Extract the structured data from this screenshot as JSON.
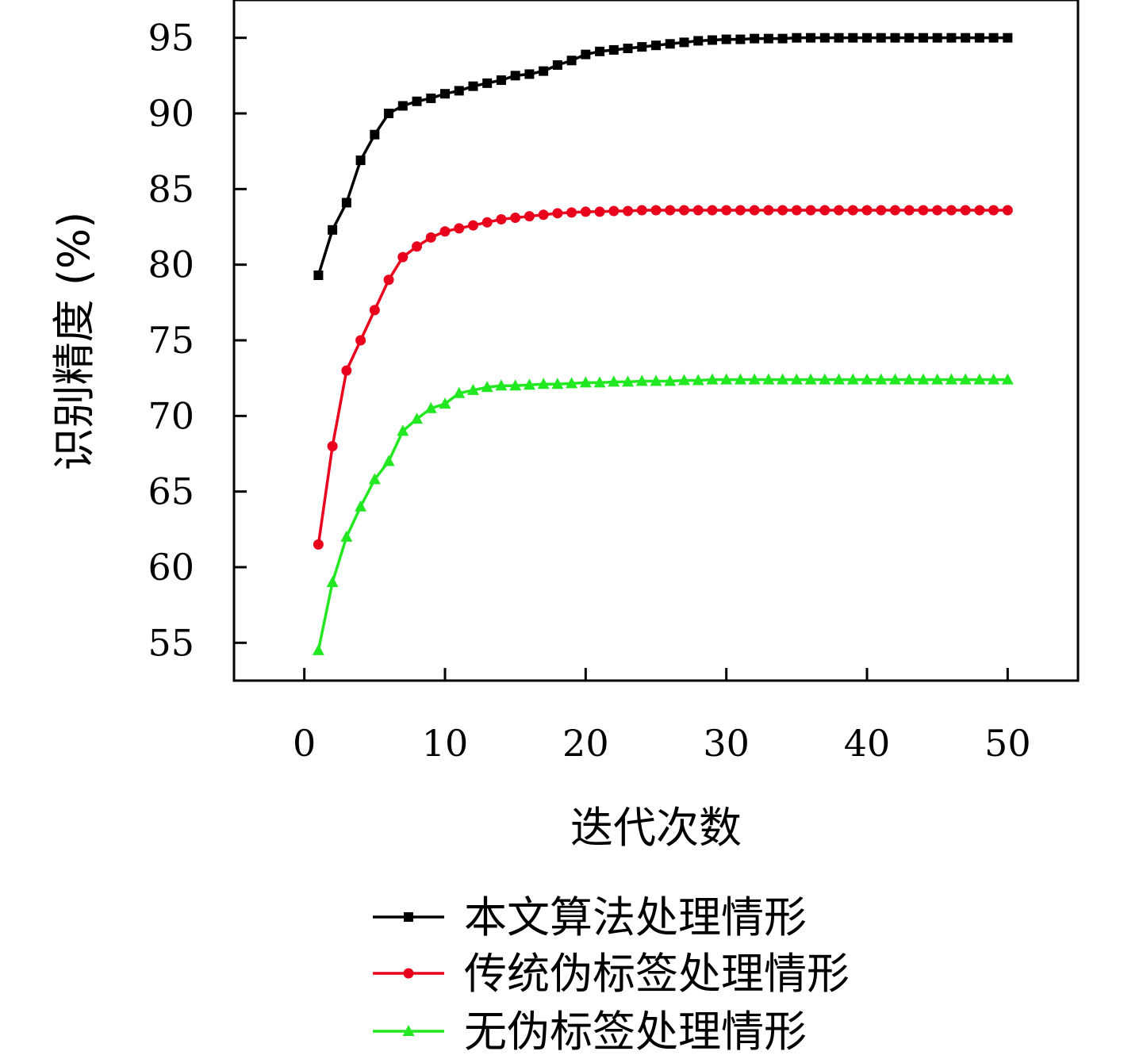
{
  "chart_data": {
    "type": "line",
    "xlabel": "迭代次数",
    "ylabel": "识别精度 (%)",
    "xlim": [
      -5,
      55
    ],
    "ylim": [
      52.5,
      97.5
    ],
    "xticks": [
      0,
      10,
      20,
      30,
      40,
      50
    ],
    "yticks": [
      55,
      60,
      65,
      70,
      75,
      80,
      85,
      90,
      95
    ],
    "grid": false,
    "legend_position": "bottom",
    "x": [
      1,
      2,
      3,
      4,
      5,
      6,
      7,
      8,
      9,
      10,
      11,
      12,
      13,
      14,
      15,
      16,
      17,
      18,
      19,
      20,
      21,
      22,
      23,
      24,
      25,
      26,
      27,
      28,
      29,
      30,
      31,
      32,
      33,
      34,
      35,
      36,
      37,
      38,
      39,
      40,
      41,
      42,
      43,
      44,
      45,
      46,
      47,
      48,
      49,
      50
    ],
    "series": [
      {
        "name": "本文算法处理情形",
        "color": "#000000",
        "marker": "square",
        "values": [
          79.3,
          82.3,
          84.1,
          86.9,
          88.6,
          90.0,
          90.5,
          90.8,
          91.0,
          91.3,
          91.5,
          91.8,
          92.0,
          92.2,
          92.5,
          92.6,
          92.8,
          93.2,
          93.5,
          93.9,
          94.1,
          94.2,
          94.3,
          94.4,
          94.5,
          94.6,
          94.7,
          94.8,
          94.85,
          94.9,
          94.9,
          94.95,
          94.95,
          94.95,
          95,
          95,
          95,
          95,
          95,
          95,
          95,
          95,
          95,
          95,
          95,
          95,
          95,
          95,
          95,
          95
        ]
      },
      {
        "name": "传统伪标签处理情形",
        "color": "#e8001c",
        "marker": "circle",
        "values": [
          61.5,
          68.0,
          73.0,
          75.0,
          77.0,
          79.0,
          80.5,
          81.2,
          81.8,
          82.2,
          82.4,
          82.6,
          82.8,
          83.0,
          83.1,
          83.2,
          83.3,
          83.4,
          83.45,
          83.5,
          83.5,
          83.55,
          83.55,
          83.6,
          83.6,
          83.6,
          83.6,
          83.6,
          83.6,
          83.6,
          83.6,
          83.6,
          83.6,
          83.6,
          83.6,
          83.6,
          83.6,
          83.6,
          83.6,
          83.6,
          83.6,
          83.6,
          83.6,
          83.6,
          83.6,
          83.6,
          83.6,
          83.6,
          83.6,
          83.6
        ]
      },
      {
        "name": "无伪标签处理情形",
        "color": "#22e822",
        "marker": "triangle",
        "values": [
          54.5,
          59.0,
          62.0,
          64.0,
          65.8,
          67.0,
          69.0,
          69.8,
          70.5,
          70.8,
          71.5,
          71.7,
          71.9,
          72.0,
          72.0,
          72.05,
          72.1,
          72.1,
          72.15,
          72.2,
          72.2,
          72.25,
          72.25,
          72.3,
          72.3,
          72.3,
          72.35,
          72.35,
          72.4,
          72.4,
          72.4,
          72.4,
          72.4,
          72.4,
          72.4,
          72.4,
          72.4,
          72.4,
          72.4,
          72.4,
          72.4,
          72.4,
          72.4,
          72.4,
          72.4,
          72.4,
          72.4,
          72.4,
          72.4,
          72.4
        ]
      }
    ]
  }
}
